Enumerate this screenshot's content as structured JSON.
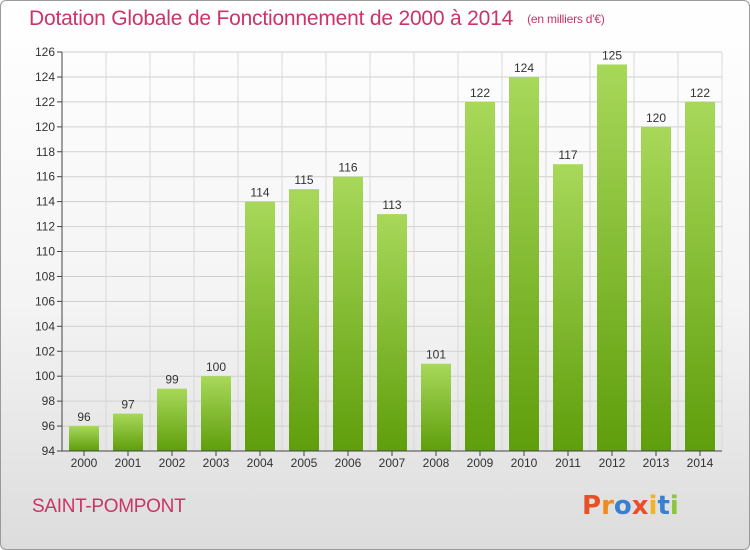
{
  "header": {
    "title": "Dotation Globale de Fonctionnement de 2000 à 2014",
    "unit": "(en milliers d'€)"
  },
  "footer": {
    "commune": "SAINT-POMPONT",
    "logo_text": "Proxiti"
  },
  "colors": {
    "title": "#cc3366",
    "bar_light": "#a8d85a",
    "bar_dark": "#5f9e0c",
    "logo_letters": [
      "#e8502a",
      "#f08a1e",
      "#3a7fd0",
      "#e8502a",
      "#f0b41e",
      "#3a7fd0",
      "#8cc63e"
    ]
  },
  "chart_data": {
    "type": "bar",
    "categories": [
      "2000",
      "2001",
      "2002",
      "2003",
      "2004",
      "2005",
      "2006",
      "2007",
      "2008",
      "2009",
      "2010",
      "2011",
      "2012",
      "2013",
      "2014"
    ],
    "values": [
      96,
      97,
      99,
      100,
      114,
      115,
      116,
      113,
      101,
      122,
      124,
      117,
      125,
      120,
      122
    ],
    "ylim": [
      94,
      126
    ],
    "yticks": [
      94,
      96,
      98,
      100,
      102,
      104,
      106,
      108,
      110,
      112,
      114,
      116,
      118,
      120,
      122,
      124,
      126
    ],
    "grid": true,
    "data_labels": true
  }
}
